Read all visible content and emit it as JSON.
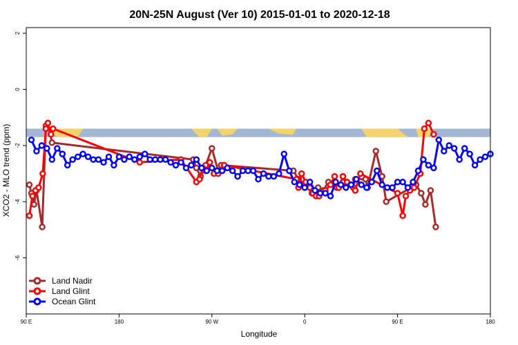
{
  "chart_data": {
    "type": "line",
    "title": "20N-25N August (Ver 10)   2015-01-01 to 2020-12-18",
    "xlabel": "Longitude",
    "ylabel": "XCO2 - MLO trend (ppm)",
    "xlim": [
      0,
      450
    ],
    "ylim": [
      -8,
      2.2
    ],
    "x_ticks": [
      {
        "value": 0,
        "label": "90 E"
      },
      {
        "value": 90,
        "label": "180"
      },
      {
        "value": 180,
        "label": "90 W"
      },
      {
        "value": 270,
        "label": "0"
      },
      {
        "value": 360,
        "label": "90 E"
      },
      {
        "value": 450,
        "label": "180"
      }
    ],
    "y_ticks": [
      {
        "value": 2,
        "label": "2"
      },
      {
        "value": 0,
        "label": "0"
      },
      {
        "value": -2,
        "label": "-2"
      },
      {
        "value": -4,
        "label": "-4"
      },
      {
        "value": -6,
        "label": "-6"
      }
    ],
    "grid": false,
    "legend_position": "bottom-left",
    "map_band": {
      "y_top": -1.4,
      "y_bottom": -1.7,
      "ocean_color": "#a4b8d4",
      "land_color": "#f5d36b"
    },
    "series": [
      {
        "name": "Land Nadir",
        "color": "#a52a2a",
        "x": [
          3,
          5,
          7.5,
          10,
          15.5,
          19,
          21,
          25,
          162,
          165,
          169,
          174,
          180,
          186,
          189,
          259,
          264,
          271,
          277,
          283,
          288,
          293,
          301,
          307,
          317,
          319,
          329,
          331,
          339,
          345,
          349,
          378,
          383,
          387,
          392,
          397
        ],
        "y": [
          -3.4,
          -3.7,
          -4.1,
          -3.6,
          -4.9,
          -1.3,
          -1.2,
          -1.9,
          -2.5,
          -2.8,
          -3.1,
          -2.7,
          -2.1,
          -2.9,
          -2.7,
          -2.9,
          -3.2,
          -3.4,
          -3.7,
          -3.5,
          -3.6,
          -3.3,
          -3.5,
          -3.3,
          -3.5,
          -3.2,
          -3.2,
          -3.5,
          -2.2,
          -3.1,
          -4.0,
          -3.4,
          -3.7,
          -4.1,
          -3.6,
          -4.9
        ]
      },
      {
        "name": "Land Glint",
        "color": "#ff0000",
        "x": [
          3,
          6,
          9,
          12,
          16,
          19,
          21,
          24,
          26,
          110,
          150,
          165,
          168,
          171,
          174,
          178,
          182,
          186,
          192,
          262,
          264,
          267,
          271,
          275,
          278,
          281,
          284,
          290,
          295,
          299,
          303,
          307,
          311,
          315,
          319,
          324,
          360,
          365,
          368,
          372,
          376,
          382,
          386,
          390,
          395
        ],
        "y": [
          -4.5,
          -3.8,
          -3.6,
          -3.5,
          -3.0,
          -1.4,
          -1.2,
          -1.6,
          -1.4,
          -2.6,
          -2.5,
          -3.3,
          -3.2,
          -2.8,
          -2.9,
          -2.6,
          -3.0,
          -3.0,
          -2.7,
          -3.2,
          -3.5,
          -3.0,
          -3.3,
          -3.5,
          -3.7,
          -3.8,
          -3.8,
          -3.6,
          -3.4,
          -3.1,
          -3.5,
          -3.1,
          -3.3,
          -3.4,
          -3.6,
          -3.0,
          -3.7,
          -4.5,
          -3.8,
          -3.6,
          -3.5,
          -3.0,
          -1.4,
          -1.2,
          -1.6
        ]
      },
      {
        "name": "Ocean Glint",
        "color": "#0000ff",
        "x": [
          5,
          10,
          15,
          20,
          25,
          30,
          35,
          40,
          45,
          50,
          55,
          60,
          65,
          70,
          75,
          80,
          85,
          90,
          95,
          100,
          105,
          110,
          115,
          120,
          125,
          130,
          135,
          140,
          145,
          150,
          155,
          160,
          165,
          170,
          175,
          180,
          185,
          190,
          195,
          200,
          205,
          210,
          215,
          220,
          225,
          230,
          235,
          240,
          245,
          250,
          255,
          260,
          265,
          270,
          275,
          280,
          285,
          290,
          295,
          300,
          305,
          310,
          315,
          320,
          325,
          330,
          335,
          340,
          345,
          350,
          355,
          360,
          365,
          370,
          375,
          380,
          385,
          390,
          395,
          400,
          405,
          410,
          415,
          420,
          425,
          430,
          435,
          440,
          445,
          450
        ],
        "y": [
          -1.8,
          -2.2,
          -2.0,
          -2.1,
          -2.5,
          -2.1,
          -2.3,
          -2.7,
          -2.5,
          -2.4,
          -2.3,
          -2.4,
          -2.5,
          -2.5,
          -2.6,
          -2.4,
          -2.7,
          -2.4,
          -2.5,
          -2.4,
          -2.5,
          -2.4,
          -2.3,
          -2.5,
          -2.5,
          -2.5,
          -2.5,
          -2.6,
          -2.7,
          -2.6,
          -2.8,
          -2.7,
          -2.5,
          -2.8,
          -2.9,
          -2.8,
          -2.9,
          -2.9,
          -2.8,
          -2.9,
          -3.1,
          -2.9,
          -2.9,
          -2.9,
          -3.2,
          -3.0,
          -3.1,
          -3.1,
          -3.0,
          -2.3,
          -2.9,
          -3.3,
          -3.4,
          -3.5,
          -3.3,
          -3.6,
          -3.7,
          -3.7,
          -3.8,
          -3.3,
          -3.4,
          -3.5,
          -3.4,
          -3.2,
          -3.4,
          -3.5,
          -3.3,
          -2.9,
          -3.4,
          -3.5,
          -3.5,
          -3.3,
          -3.3,
          -3.5,
          -3.3,
          -2.9,
          -2.5,
          -2.7,
          -2.8,
          -1.8,
          -2.2,
          -2.0,
          -2.1,
          -2.5,
          -2.1,
          -2.3,
          -2.7,
          -2.5,
          -2.4,
          -2.3
        ]
      }
    ]
  }
}
